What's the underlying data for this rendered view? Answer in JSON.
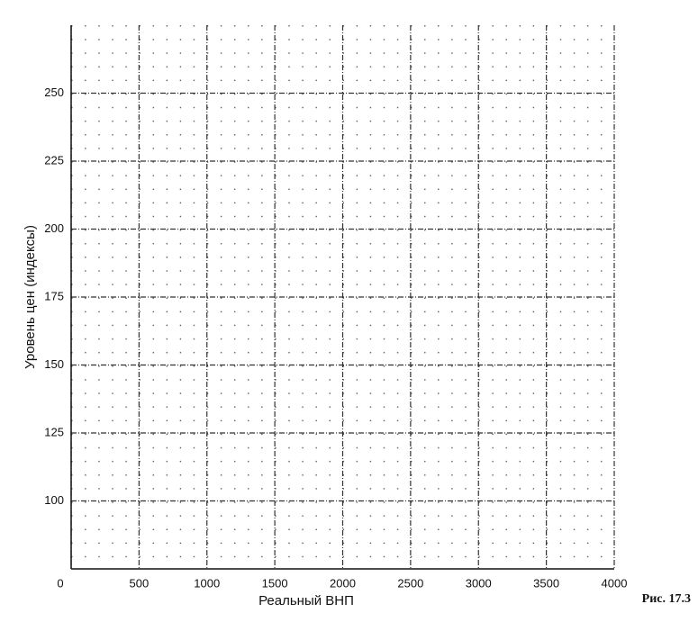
{
  "chart_data": {
    "type": "line",
    "x_label": "Реальный ВНП",
    "y_label": "Уровень цен (индексы)",
    "caption": "Рис. 17.3",
    "xlim": [
      0,
      4000
    ],
    "xticks": [
      0,
      500,
      1000,
      1500,
      2000,
      2500,
      3000,
      3500,
      4000
    ],
    "ylim": [
      75,
      275
    ],
    "yticks": [
      100,
      125,
      150,
      175,
      200,
      225,
      250
    ],
    "grid": true,
    "series": []
  }
}
